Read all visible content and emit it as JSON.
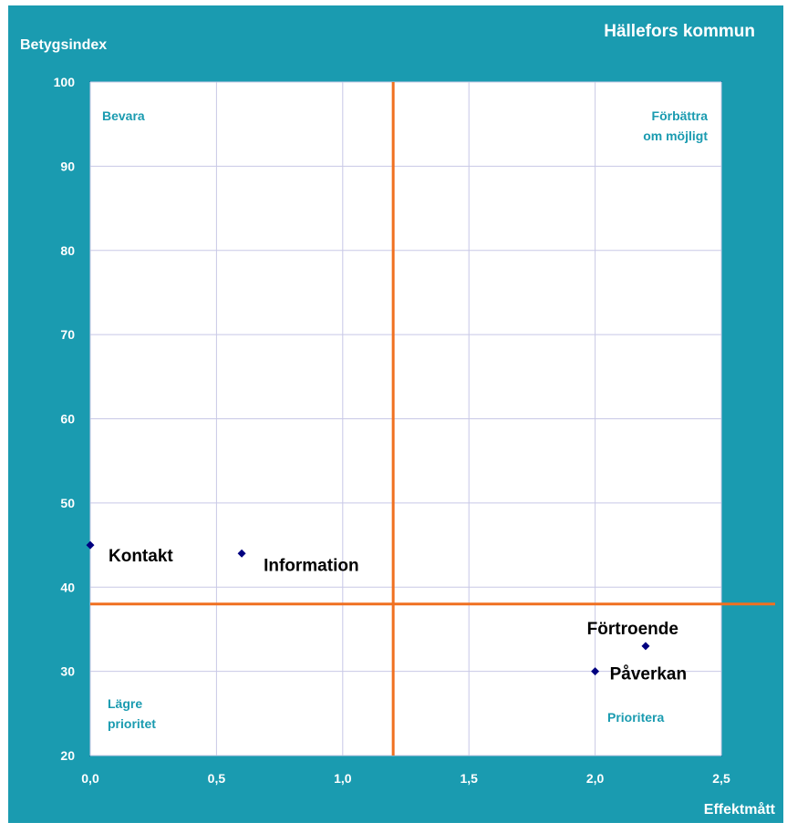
{
  "chart_data": {
    "type": "scatter",
    "title": "Hällefors kommun",
    "xlabel": "Effektmått",
    "ylabel": "Betygsindex",
    "xlim": [
      0,
      2.5
    ],
    "ylim": [
      20,
      100
    ],
    "x_ticks": [
      "0,0",
      "0,5",
      "1,0",
      "1,5",
      "2,0",
      "2,5"
    ],
    "y_ticks": [
      "20",
      "30",
      "40",
      "50",
      "60",
      "70",
      "80",
      "90",
      "100"
    ],
    "grid": true,
    "reference_lines": {
      "x": 1.2,
      "y": 38
    },
    "quadrant_labels": {
      "top_left": "Bevara",
      "top_right_line1": "Förbättra",
      "top_right_line2": "om möjligt",
      "bottom_left_line1": "Lägre",
      "bottom_left_line2": "prioritet",
      "bottom_right": "Prioritera"
    },
    "points": [
      {
        "label": "Kontakt",
        "x": 0.0,
        "y": 45
      },
      {
        "label": "Information",
        "x": 0.6,
        "y": 44
      },
      {
        "label": "Förtroende",
        "x": 2.2,
        "y": 33
      },
      {
        "label": "Påverkan",
        "x": 2.0,
        "y": 30
      }
    ]
  },
  "colors": {
    "frame_background": "#1a9bb0",
    "plot_background": "#ffffff",
    "gridline": "#c8c8e6",
    "reference_line": "#f07020",
    "marker": "#000080",
    "quadrant_label": "#1a9bb0",
    "title_text": "#ffffff",
    "tick_text": "#ffffff",
    "point_label": "#000000"
  }
}
